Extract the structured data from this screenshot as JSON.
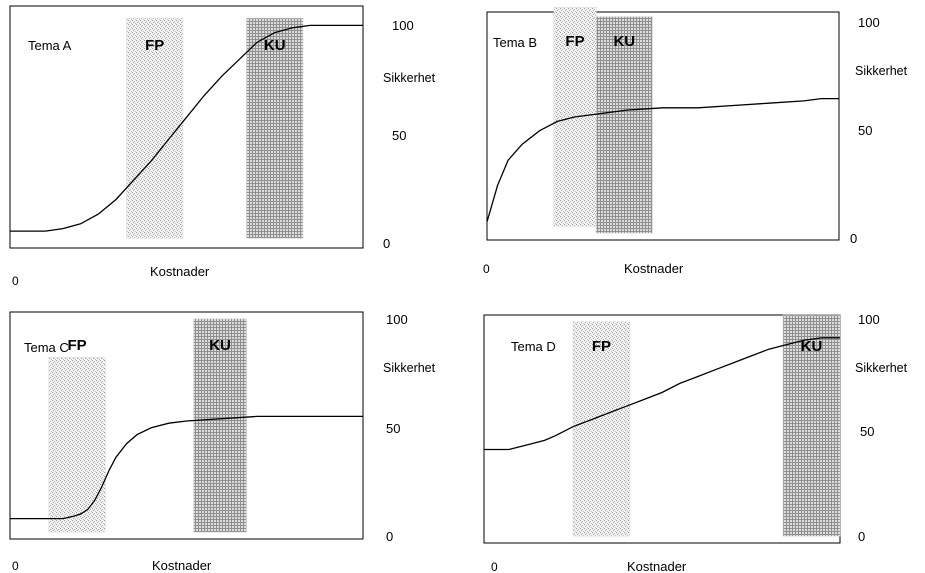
{
  "chart_data": [
    {
      "type": "line",
      "title": "Tema A",
      "xlabel": "Kostnader",
      "ylabel": "Sikkerhet",
      "x_origin_label": "0",
      "y_ticks": [
        "0",
        "50",
        "100"
      ],
      "ylim": [
        0,
        100
      ],
      "xlim": [
        0,
        100
      ],
      "bands": [
        {
          "label": "FP",
          "x0": 33,
          "x1": 49,
          "pattern": "fp",
          "y0": 4,
          "y1": 95
        },
        {
          "label": "KU",
          "x0": 67,
          "x1": 83,
          "pattern": "ku",
          "y0": 4,
          "y1": 95
        }
      ],
      "series": [
        {
          "x": [
            0,
            10,
            15,
            20,
            25,
            30,
            35,
            40,
            45,
            50,
            55,
            60,
            65,
            70,
            75,
            80,
            85,
            90,
            95,
            100
          ],
          "y": [
            7,
            7,
            8,
            10,
            14,
            20,
            28,
            36,
            45,
            54,
            63,
            71,
            78,
            85,
            89,
            91,
            92,
            92,
            92,
            92
          ]
        }
      ]
    },
    {
      "type": "line",
      "title": "Tema B",
      "xlabel": "Kostnader",
      "ylabel": "Sikkerhet",
      "x_origin_label": "0",
      "y_ticks": [
        "0",
        "50",
        "100"
      ],
      "ylim": [
        0,
        100
      ],
      "xlim": [
        0,
        100
      ],
      "bands": [
        {
          "label": "FP",
          "x0": 19,
          "x1": 31,
          "pattern": "fp",
          "y0": 6,
          "y1": 102
        },
        {
          "label": "KU",
          "x0": 31,
          "x1": 47,
          "pattern": "ku",
          "y0": 3,
          "y1": 98
        }
      ],
      "series": [
        {
          "x": [
            0,
            3,
            6,
            10,
            15,
            20,
            25,
            30,
            35,
            40,
            50,
            60,
            70,
            80,
            90,
            95,
            100
          ],
          "y": [
            8,
            24,
            35,
            42,
            48,
            52,
            54,
            55,
            56,
            57,
            58,
            58,
            59,
            60,
            61,
            62,
            62
          ]
        }
      ]
    },
    {
      "type": "line",
      "title": "Tema C",
      "xlabel": "Kostnader",
      "ylabel": "Sikkerhet",
      "x_origin_label": "0",
      "y_ticks": [
        "0",
        "50",
        "100"
      ],
      "ylim": [
        0,
        100
      ],
      "xlim": [
        0,
        100
      ],
      "bands": [
        {
          "label": "FP",
          "x0": 11,
          "x1": 27,
          "pattern": "fp",
          "y0": 3,
          "y1": 80
        },
        {
          "label": "KU",
          "x0": 52,
          "x1": 67,
          "pattern": "ku",
          "y0": 3,
          "y1": 97
        }
      ],
      "series": [
        {
          "x": [
            0,
            10,
            15,
            18,
            20,
            22,
            24,
            26,
            28,
            30,
            33,
            36,
            40,
            45,
            50,
            60,
            70,
            80,
            90,
            100
          ],
          "y": [
            9,
            9,
            9,
            10,
            11,
            13,
            17,
            23,
            30,
            36,
            42,
            46,
            49,
            51,
            52,
            53,
            54,
            54,
            54,
            54
          ]
        }
      ]
    },
    {
      "type": "line",
      "title": "Tema D",
      "xlabel": "Kostnader",
      "ylabel": "Sikkerhet",
      "x_origin_label": "0",
      "y_ticks": [
        "0",
        "50",
        "100"
      ],
      "ylim": [
        0,
        100
      ],
      "xlim": [
        0,
        100
      ],
      "bands": [
        {
          "label": "FP",
          "x0": 25,
          "x1": 41,
          "pattern": "fp",
          "y0": 3,
          "y1": 97
        },
        {
          "label": "KU",
          "x0": 84,
          "x1": 100,
          "pattern": "ku",
          "y0": 3,
          "y1": 100
        }
      ],
      "series": [
        {
          "x": [
            0,
            7,
            12,
            17,
            20,
            25,
            30,
            35,
            40,
            45,
            50,
            55,
            60,
            65,
            70,
            75,
            80,
            85,
            90,
            95,
            100
          ],
          "y": [
            41,
            41,
            43,
            45,
            47,
            51,
            54,
            57,
            60,
            63,
            66,
            70,
            73,
            76,
            79,
            82,
            85,
            87,
            89,
            90,
            90
          ]
        }
      ]
    }
  ]
}
